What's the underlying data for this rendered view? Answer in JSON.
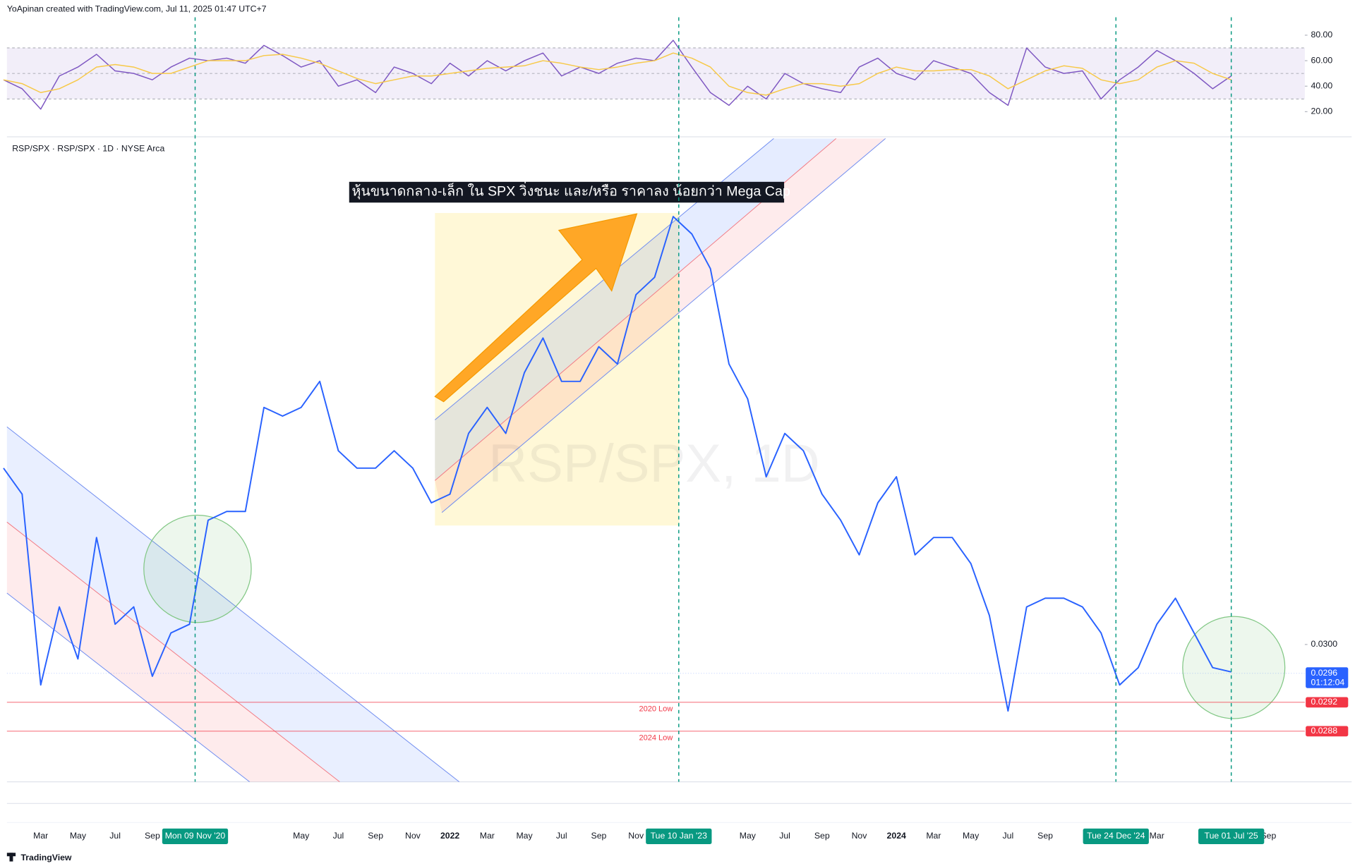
{
  "header": {
    "credit": "YoApinan created with TradingView.com, Jul 11, 2025 01:47 UTC+7"
  },
  "footer": {
    "brand": "TradingView"
  },
  "chart_data": [
    {
      "type": "line",
      "series": [
        {
          "color": "#7e57c2",
          "values": [
            45,
            38,
            22,
            48,
            55,
            65,
            52,
            50,
            45,
            55,
            62,
            60,
            62,
            58,
            72,
            64,
            55,
            60,
            40,
            45,
            35,
            55,
            50,
            42,
            58,
            48,
            60,
            52,
            60,
            66,
            48,
            55,
            50,
            58,
            62,
            60,
            76,
            55,
            35,
            25,
            40,
            30,
            50,
            42,
            38,
            35,
            55,
            62,
            50,
            45,
            60,
            55,
            50,
            35,
            25,
            70,
            55,
            50,
            52,
            30,
            45,
            55,
            68,
            60,
            50,
            38,
            48,
            null,
            null
          ]
        },
        {
          "color": "#f7c948",
          "values": [
            45,
            42,
            35,
            38,
            45,
            55,
            57,
            55,
            50,
            50,
            55,
            60,
            60,
            60,
            64,
            65,
            62,
            58,
            52,
            46,
            42,
            45,
            48,
            48,
            50,
            52,
            54,
            55,
            56,
            60,
            58,
            55,
            53,
            55,
            58,
            60,
            66,
            62,
            55,
            40,
            35,
            33,
            38,
            42,
            42,
            40,
            42,
            50,
            55,
            52,
            52,
            53,
            53,
            48,
            38,
            45,
            52,
            56,
            54,
            45,
            42,
            45,
            55,
            60,
            58,
            50,
            45,
            null,
            null
          ]
        }
      ],
      "ylim": [
        1,
        94
      ],
      "yticks": [
        {
          "value": 80,
          "label": "80.00"
        },
        {
          "value": 60,
          "label": "60.00"
        },
        {
          "value": 40,
          "label": "40.00"
        },
        {
          "value": 20,
          "label": "20.00"
        }
      ],
      "levels": [
        70,
        50,
        30
      ]
    },
    {
      "type": "line",
      "title": "RSP/SPX · RSP/SPX · 1D · NYSE Arca",
      "watermark": "RSP/SPX, 1D",
      "annotation": "หุ้นขนาดกลาง-เล็ก ใน SPX วิ่งชนะ และ/หรือ ราคาลง น้อยกว่า Mega Cap",
      "categories": [
        null,
        null,
        "Mar",
        null,
        "May",
        null,
        "Jul",
        null,
        "Sep",
        null,
        null,
        null,
        null,
        null,
        null,
        null,
        "May",
        null,
        "Jul",
        null,
        "Sep",
        null,
        "Nov",
        null,
        "2022",
        null,
        "Mar",
        null,
        "May",
        null,
        "Jul",
        null,
        "Sep",
        null,
        "Nov",
        null,
        null,
        null,
        null,
        null,
        "May",
        null,
        "Jul",
        null,
        "Sep",
        null,
        "Nov",
        null,
        "2024",
        null,
        "Mar",
        null,
        "May",
        null,
        "Jul",
        null,
        "Sep",
        null,
        null,
        null,
        null,
        null,
        "Mar",
        null,
        null,
        null,
        null,
        null,
        "Sep"
      ],
      "series": [
        {
          "color": "#2962ff",
          "values": [
            0.03244,
            0.03208,
            0.02944,
            0.03052,
            0.0298,
            0.03148,
            0.03028,
            0.03052,
            0.02956,
            0.03016,
            0.03028,
            0.03172,
            0.03184,
            0.03184,
            0.03328,
            0.03316,
            0.03328,
            0.03364,
            0.03268,
            0.03244,
            0.03244,
            0.03268,
            0.03244,
            0.03196,
            0.03208,
            0.03292,
            0.03328,
            0.03292,
            0.03376,
            0.03424,
            0.03364,
            0.03364,
            0.03412,
            0.03388,
            0.03484,
            0.03508,
            0.03592,
            0.03568,
            0.0352,
            0.03388,
            0.0334,
            0.03232,
            0.03292,
            0.03268,
            0.03208,
            0.03172,
            0.03124,
            0.03196,
            0.03232,
            0.03124,
            0.03148,
            0.03148,
            0.03112,
            0.0304,
            0.02908,
            0.03052,
            0.03064,
            0.03064,
            0.03052,
            0.03016,
            0.02944,
            0.02968,
            0.03028,
            0.03064,
            0.03016,
            0.02968,
            0.02962,
            null,
            null
          ]
        }
      ],
      "ylim": [
        0.0281,
        0.037
      ],
      "yticks": [
        {
          "value": 0.03,
          "label": "0.0300"
        }
      ],
      "last_price": {
        "value": 0.0296,
        "label": "0.0296",
        "countdown": "01:12:04"
      },
      "levels": [
        {
          "name": "2020 Low",
          "value": 0.0292,
          "label": "0.0292"
        },
        {
          "name": "2024 Low",
          "value": 0.0288,
          "label": "0.0288"
        }
      ],
      "x_markers": [
        "Mon 09 Nov '20",
        "Tue 10 Jan '23",
        "Tue 24 Dec '24",
        "Tue 01 Jul '25"
      ]
    }
  ]
}
